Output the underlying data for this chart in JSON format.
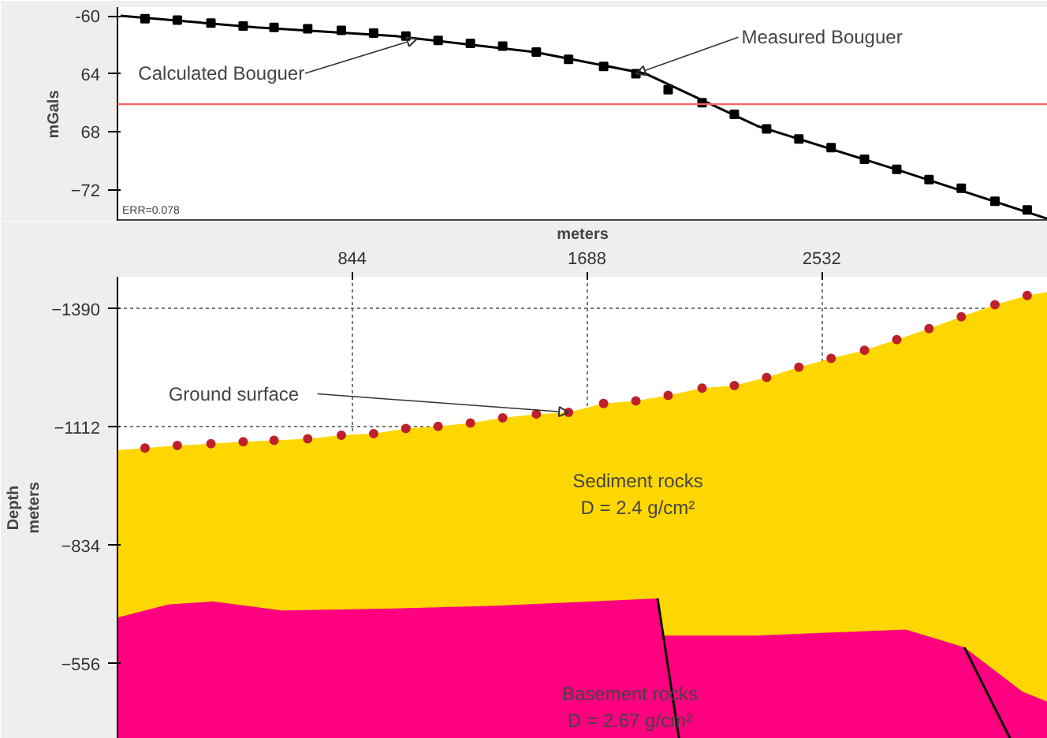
{
  "chart_data": [
    {
      "type": "line",
      "ylabel": "mGals",
      "xlim": [
        0,
        3345
      ],
      "ylim": [
        -74.2,
        -59.4
      ],
      "yticks": [
        {
          "value": -60,
          "label": "-60"
        },
        {
          "value": -64,
          "label": "64"
        },
        {
          "value": -68,
          "label": "68"
        },
        -72
      ],
      "tick_labels": "y",
      "grid": false,
      "series": [
        {
          "color": "#000000",
          "x": [
            11,
            500,
            1000,
            1500,
            1900,
            2300,
            2800,
            3343
          ],
          "values": [
            -60.0,
            -60.8,
            -61.4,
            -62.5,
            -64.0,
            -67.6,
            -70.6,
            -74.0
          ]
        },
        {
          "type": "scatter",
          "marker": "square",
          "color": "#000000",
          "x": [
            99,
            215,
            336,
            452,
            563,
            684,
            805,
            921,
            1037,
            1153,
            1269,
            1385,
            1506,
            1622,
            1748,
            1864,
            1980,
            2102,
            2218,
            2334,
            2450,
            2566,
            2686,
            2802,
            2918,
            3034,
            3155,
            3271
          ],
          "values": [
            -60.2,
            -60.3,
            -60.5,
            -60.7,
            -60.8,
            -60.9,
            -61.0,
            -61.2,
            -61.4,
            -61.7,
            -61.9,
            -62.1,
            -62.5,
            -63.0,
            -63.5,
            -64.0,
            -65.1,
            -66.0,
            -66.8,
            -67.8,
            -68.5,
            -69.1,
            -69.9,
            -70.6,
            -71.3,
            -71.9,
            -72.8,
            -73.4
          ]
        }
      ],
      "ref_lines": [
        {
          "axis": "y",
          "value": -66.1,
          "color": "#ff6060"
        }
      ],
      "annotations": [
        {
          "text": "Calculated Bouguer",
          "x": 1076,
          "y": -61.6
        },
        {
          "text": "Measured Bouguer",
          "x": 1864,
          "y": -64.0
        },
        "ERR=0.078"
      ]
    },
    {
      "type": "area",
      "xlabel": "meters",
      "ylabel": "Depth\nmeters",
      "xlim": [
        0,
        3345
      ],
      "ylim": [
        -379,
        -1466
      ],
      "xticks": [
        844,
        1688,
        2532
      ],
      "yticks": [
        -1390,
        -1112,
        -834,
        -556
      ],
      "grid": true,
      "series": [
        {
          "color": "#ffd700",
          "x": [
            0,
            99,
            215,
            336,
            452,
            563,
            684,
            805,
            921,
            1037,
            1153,
            1269,
            1385,
            1506,
            1622,
            1748,
            1864,
            1980,
            2102,
            2218,
            2334,
            2450,
            2566,
            2686,
            2802,
            2918,
            3034,
            3155,
            3271,
            3345
          ],
          "values": [
            -1058,
            -1063,
            -1069,
            -1073,
            -1078,
            -1081,
            -1085,
            -1093,
            -1097,
            -1109,
            -1114,
            -1122,
            -1134,
            -1143,
            -1147,
            -1168,
            -1174,
            -1187,
            -1204,
            -1210,
            -1229,
            -1253,
            -1274,
            -1293,
            -1318,
            -1344,
            -1372,
            -1400,
            -1422,
            -1430
          ]
        },
        {
          "type": "scatter",
          "marker": "circle",
          "color": "#c0202a",
          "x": [
            99,
            215,
            336,
            452,
            563,
            684,
            805,
            921,
            1037,
            1153,
            1269,
            1385,
            1506,
            1622,
            1748,
            1864,
            1980,
            2102,
            2218,
            2334,
            2450,
            2566,
            2686,
            2802,
            2918,
            3034,
            3155,
            3271
          ],
          "values": [
            -1063,
            -1069,
            -1073,
            -1078,
            -1081,
            -1085,
            -1093,
            -1097,
            -1109,
            -1114,
            -1122,
            -1134,
            -1143,
            -1147,
            -1168,
            -1174,
            -1187,
            -1204,
            -1210,
            -1229,
            -1253,
            -1274,
            -1293,
            -1318,
            -1344,
            -1372,
            -1400,
            -1422
          ]
        },
        {
          "color": "#ff0080",
          "x": [
            0,
            182,
            342,
            590,
            965,
            1362,
            1942,
            1958,
            2300,
            2835,
            3045,
            3254,
            3345
          ],
          "values": [
            -664,
            -695,
            -702,
            -681,
            -685,
            -692,
            -709,
            -622,
            -622,
            -636,
            -594,
            -490,
            -466
          ]
        },
        {
          "type": "line",
          "color": "#000000",
          "x": [
            1942,
            2019
          ],
          "values": [
            -709,
            -379
          ]
        },
        {
          "type": "line",
          "color": "#000000",
          "x": [
            3045,
            3210
          ],
          "values": [
            -594,
            -379
          ]
        }
      ],
      "annotations": [
        {
          "text": "Ground surface",
          "x": 1622,
          "y": -1147
        },
        "Sediment rocks\nD = 2.4 g/cm²",
        "Basement rocks\nD = 2.67 g/cm²"
      ]
    }
  ]
}
